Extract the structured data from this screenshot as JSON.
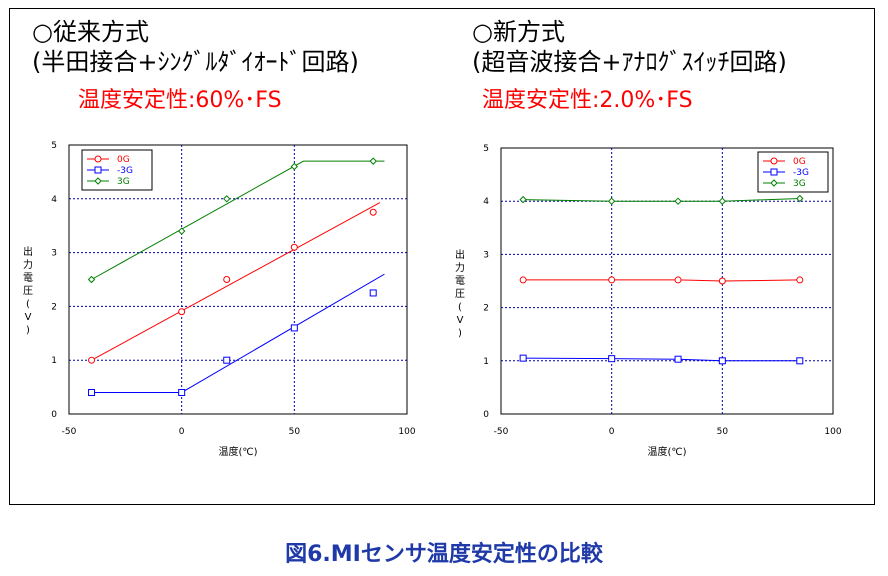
{
  "panels": [
    {
      "title": "○従来方式",
      "subtitle": "(半田接合+ｼﾝｸﾞﾙﾀﾞｲｵｰﾄﾞ回路)",
      "stability": "温度安定性:60%･FS"
    },
    {
      "title": "○新方式",
      "subtitle": "(超音波接合+ｱﾅﾛｸﾞｽｲｯﾁ回路)",
      "stability": "温度安定性:2.0%･FS"
    }
  ],
  "caption": "図6.MIセンサ温度安定性の比較",
  "colors": {
    "0G": "#ff0000",
    "-3G": "#0000ff",
    "3G": "#008000",
    "grid": "#0000aa",
    "stability": "#ff0000",
    "caption": "#1f3aa8"
  },
  "chart_data": [
    {
      "type": "line",
      "xlabel": "温度(℃)",
      "ylabel": "出力電圧(V)",
      "xlim": [
        -50,
        100
      ],
      "ylim": [
        0,
        5
      ],
      "xticks": [
        -50,
        0,
        50,
        100
      ],
      "yticks": [
        0,
        1,
        2,
        3,
        4,
        5
      ],
      "grid": true,
      "legend_position": "top-left",
      "series": [
        {
          "name": "0G",
          "marker": "circle",
          "color": "#ff0000",
          "points": [
            [
              -40,
              1.0
            ],
            [
              0,
              1.9
            ],
            [
              20,
              2.5
            ],
            [
              50,
              3.1
            ],
            [
              85,
              3.75
            ]
          ],
          "fit": [
            [
              -40,
              1.0
            ],
            [
              88,
              3.93
            ]
          ]
        },
        {
          "name": "-3G",
          "marker": "square",
          "color": "#0000ff",
          "points": [
            [
              -40,
              0.4
            ],
            [
              0,
              0.4
            ],
            [
              20,
              1.0
            ],
            [
              50,
              1.6
            ],
            [
              85,
              2.25
            ]
          ],
          "fit": [
            [
              -40,
              0.4
            ],
            [
              0,
              0.4
            ],
            [
              90,
              2.6
            ]
          ]
        },
        {
          "name": "3G",
          "marker": "diamond",
          "color": "#008000",
          "points": [
            [
              -40,
              2.5
            ],
            [
              0,
              3.4
            ],
            [
              20,
              4.0
            ],
            [
              50,
              4.6
            ],
            [
              85,
              4.7
            ]
          ],
          "fit": [
            [
              -40,
              2.5
            ],
            [
              54,
              4.7
            ],
            [
              90,
              4.7
            ]
          ]
        }
      ]
    },
    {
      "type": "line",
      "xlabel": "温度(℃)",
      "ylabel": "出力電圧(V)",
      "xlim": [
        -50,
        100
      ],
      "ylim": [
        0,
        5
      ],
      "xticks": [
        -50,
        0,
        50,
        100
      ],
      "yticks": [
        0,
        1,
        2,
        3,
        4,
        5
      ],
      "grid": true,
      "legend_position": "top-right",
      "series": [
        {
          "name": "0G",
          "marker": "circle",
          "color": "#ff0000",
          "points": [
            [
              -40,
              2.52
            ],
            [
              0,
              2.52
            ],
            [
              30,
              2.52
            ],
            [
              50,
              2.5
            ],
            [
              85,
              2.52
            ]
          ],
          "fit": [
            [
              -40,
              2.52
            ],
            [
              30,
              2.52
            ],
            [
              50,
              2.5
            ],
            [
              85,
              2.52
            ]
          ]
        },
        {
          "name": "-3G",
          "marker": "square",
          "color": "#0000ff",
          "points": [
            [
              -40,
              1.05
            ],
            [
              0,
              1.04
            ],
            [
              30,
              1.03
            ],
            [
              50,
              1.0
            ],
            [
              85,
              1.0
            ]
          ],
          "fit": [
            [
              -40,
              1.05
            ],
            [
              0,
              1.04
            ],
            [
              30,
              1.03
            ],
            [
              50,
              1.0
            ],
            [
              85,
              1.0
            ]
          ]
        },
        {
          "name": "3G",
          "marker": "diamond",
          "color": "#008000",
          "points": [
            [
              -40,
              4.03
            ],
            [
              0,
              4.0
            ],
            [
              30,
              4.0
            ],
            [
              50,
              4.0
            ],
            [
              85,
              4.05
            ]
          ],
          "fit": [
            [
              -40,
              4.03
            ],
            [
              0,
              4.0
            ],
            [
              50,
              4.0
            ],
            [
              85,
              4.05
            ]
          ]
        }
      ]
    }
  ]
}
